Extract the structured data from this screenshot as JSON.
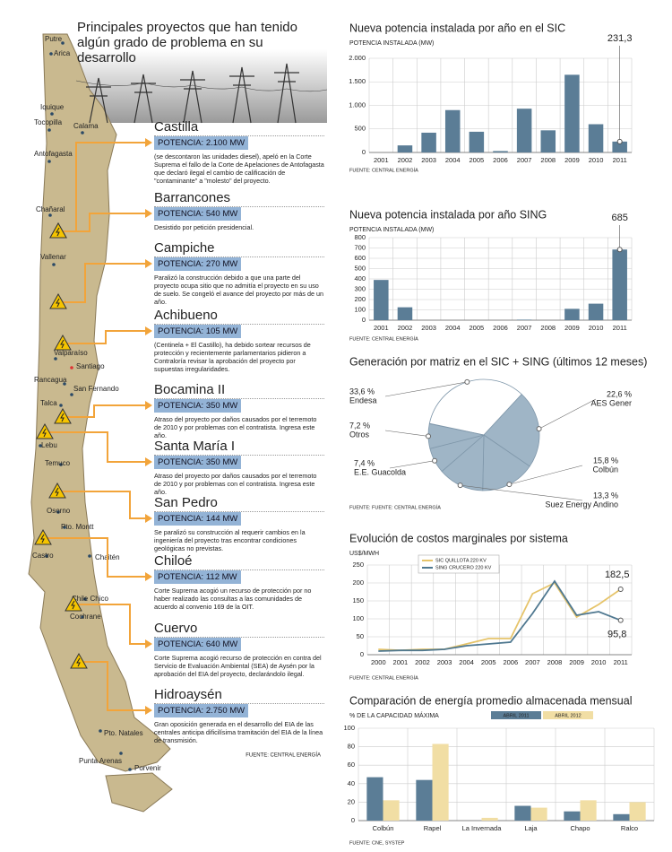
{
  "left_panel": {
    "title": "Principales proyectos que han tenido algún grado de problema en su desarrollo",
    "cities": [
      "Putre",
      "Arica",
      "Iquique",
      "Tocopilla",
      "Calama",
      "Antofagasta",
      "Chañaral",
      "Vallenar",
      "Valparaíso",
      "Santiago",
      "Rancagua",
      "San Fernando",
      "Talca",
      "Lebu",
      "Temuco",
      "Osorno",
      "Pto. Montt",
      "Castro",
      "Chaitén",
      "Chile Chico",
      "Cochrane",
      "Pto. Natales",
      "Punta Arenas",
      "Porvenir"
    ],
    "projects": [
      {
        "name": "Castilla",
        "power": "POTENCIA: 2.100 MW",
        "text": "(se descontaron las unidades diesel), apeló en la Corte Suprema el fallo de la Corte de Apelaciones de Antofagasta que declaró ilegal el cambio de calificación de \"contaminante\" a \"molesto\" del proyecto."
      },
      {
        "name": "Barrancones",
        "power": "POTENCIA: 540 MW",
        "text": "Desistido por petición presidencial."
      },
      {
        "name": "Campiche",
        "power": "POTENCIA: 270 MW",
        "text": "Paralizó la construcción debido a que una parte del proyecto ocupa sitio que no admitía el proyecto en su uso de suelo. Se congeló el avance del proyecto por más de un año."
      },
      {
        "name": "Achibueno",
        "power": "POTENCIA: 105 MW",
        "text": "(Centinela + El Castillo), ha debido sortear recursos de protección y recientemente parlamentarios pidieron a Contraloría revisar la aprobación del proyecto por supuestas irregularidades."
      },
      {
        "name": "Bocamina II",
        "power": "POTENCIA: 350 MW",
        "text": "Atraso del proyecto por daños causados por el terremoto de 2010 y por problemas con el contratista. Ingresa este año."
      },
      {
        "name": "Santa María I",
        "power": "POTENCIA: 350 MW",
        "text": "Atraso del proyecto por daños causados por el terremoto de 2010 y por problemas con el contratista. Ingresa este año."
      },
      {
        "name": "San Pedro",
        "power": "POTENCIA: 144 MW",
        "text": "Se paralizó su construcción al requerir cambios en la ingeniería del proyecto tras encontrar condiciones geológicas no previstas."
      },
      {
        "name": "Chiloé",
        "power": "POTENCIA: 112 MW",
        "text": "Corte Suprema acogió un recurso de protección por no haber realizado las consultas a las comunidades de acuerdo al convenio 169 de la OIT."
      },
      {
        "name": "Cuervo",
        "power": "POTENCIA: 640 MW",
        "text": "Corte Suprema acogió recurso de protección en contra del Servicio de Evaluación Ambiental (SEA) de Aysén por la aprobación del EIA del proyecto, declarándolo ilegal."
      },
      {
        "name": "Hidroaysén",
        "power": "POTENCIA: 2.750 MW",
        "text": "Gran oposición generada en el desarrollo del EIA de las centrales anticipa dificilísima tramitación del EIA de la línea de transmisión."
      }
    ],
    "source": "FUENTE: CENTRAL ENERGÍA"
  },
  "chart_data": [
    {
      "type": "bar",
      "title": "Nueva potencia instalada por año en el SIC",
      "y_label": "POTENCIA INSTALADA (MW)",
      "source": "FUENTE: CENTRAL ENERGÍA",
      "categories": [
        "2001",
        "2002",
        "2003",
        "2004",
        "2005",
        "2006",
        "2007",
        "2008",
        "2009",
        "2010",
        "2011"
      ],
      "values": [
        0,
        150,
        420,
        900,
        440,
        30,
        930,
        470,
        1650,
        600,
        231.3
      ],
      "value_labels": [
        null,
        null,
        null,
        null,
        null,
        null,
        null,
        null,
        null,
        null,
        "231,3"
      ],
      "color": "#5b7d96",
      "ylim": [
        0,
        2000
      ],
      "yticks": [
        0,
        500,
        {
          "value": 1000,
          "label": "1.000"
        },
        {
          "value": 1500,
          "label": "1.500"
        },
        {
          "value": 2000,
          "label": "2.000"
        }
      ],
      "grid": true
    },
    {
      "type": "bar",
      "title": "Nueva potencia instalada por año SING",
      "y_label": "POTENCIA INSTALADA (MW)",
      "source": "FUENTE: CENTRAL ENERGÍA",
      "categories": [
        "2001",
        "2002",
        "2003",
        "2004",
        "2005",
        "2006",
        "2007",
        "2008",
        "2009",
        "2010",
        "2011"
      ],
      "values": [
        390,
        125,
        0,
        0,
        0,
        0,
        5,
        0,
        110,
        160,
        685
      ],
      "value_labels": [
        null,
        null,
        null,
        null,
        null,
        null,
        null,
        null,
        null,
        null,
        "685"
      ],
      "color": "#5b7d96",
      "ylim": [
        0,
        800
      ],
      "yticks": [
        0,
        100,
        200,
        300,
        400,
        500,
        600,
        700,
        800
      ],
      "grid": true
    },
    {
      "type": "pie",
      "title": "Generación por matriz en el SIC + SING (últimos 12 meses)",
      "source": "FUENTE: FUENTE: CENTRAL ENERGÍA",
      "categories": [
        "Endesa",
        "AES Gener",
        "Colbún",
        "Suez Energy Andino",
        "E.E. Guacolda",
        "Otros"
      ],
      "values": [
        33.6,
        22.6,
        15.8,
        13.3,
        7.4,
        7.2
      ],
      "value_labels": [
        "33,6 %",
        "22,6 %",
        "15,8 %",
        "13,3 %",
        "7,4 %",
        "7,2 %"
      ],
      "colors": [
        "#ffffff",
        "#9fb5c6",
        "#9fb5c6",
        "#9fb5c6",
        "#9fb5c6",
        "#9fb5c6"
      ]
    },
    {
      "type": "line",
      "title": "Evolución de costos marginales por sistema",
      "y_label": "US$/MWH",
      "source": "FUENTE: CENTRAL ENERGÍA",
      "categories": [
        "2000",
        "2001",
        "2002",
        "2003",
        "2004",
        "2005",
        "2006",
        "2007",
        "2008",
        "2009",
        "2010",
        "2011"
      ],
      "series": [
        {
          "name": "SIC QUILLOTA 220 KV",
          "color": "#e6c46a",
          "values": [
            15,
            12,
            15,
            15,
            30,
            45,
            45,
            170,
            200,
            105,
            140,
            182.5
          ],
          "value_labels": [
            null,
            null,
            null,
            null,
            null,
            null,
            null,
            null,
            null,
            null,
            null,
            "182,5"
          ]
        },
        {
          "name": "SING CRUCERO 220 KV",
          "color": "#4f7890",
          "values": [
            10,
            12,
            12,
            15,
            25,
            30,
            35,
            115,
            205,
            110,
            120,
            95.8
          ],
          "value_labels": [
            null,
            null,
            null,
            null,
            null,
            null,
            null,
            null,
            null,
            null,
            null,
            "95,8"
          ]
        }
      ],
      "ylim": [
        0,
        250
      ],
      "yticks": [
        0,
        50,
        100,
        150,
        200,
        250
      ],
      "grid": true
    },
    {
      "type": "bar",
      "title": "Comparación de energía promedio almacenada mensual",
      "y_label": "% DE LA CAPACIDAD MÁXIMA",
      "source": "FUENTE: CNE, SYSTEP",
      "categories": [
        "Colbún",
        "Rapel",
        "La Invernada",
        "Laja",
        "Chapo",
        "Ralco"
      ],
      "series": [
        {
          "name": "ABRIL 2011",
          "color": "#5b7d96",
          "values": [
            47,
            44,
            0,
            16,
            10,
            7
          ]
        },
        {
          "name": "ABRIL 2012",
          "color": "#f1dea4",
          "values": [
            22,
            83,
            3,
            14,
            22,
            20
          ]
        }
      ],
      "ylim": [
        0,
        100
      ],
      "yticks": [
        0,
        20,
        40,
        60,
        80,
        100
      ],
      "grid": true
    }
  ]
}
